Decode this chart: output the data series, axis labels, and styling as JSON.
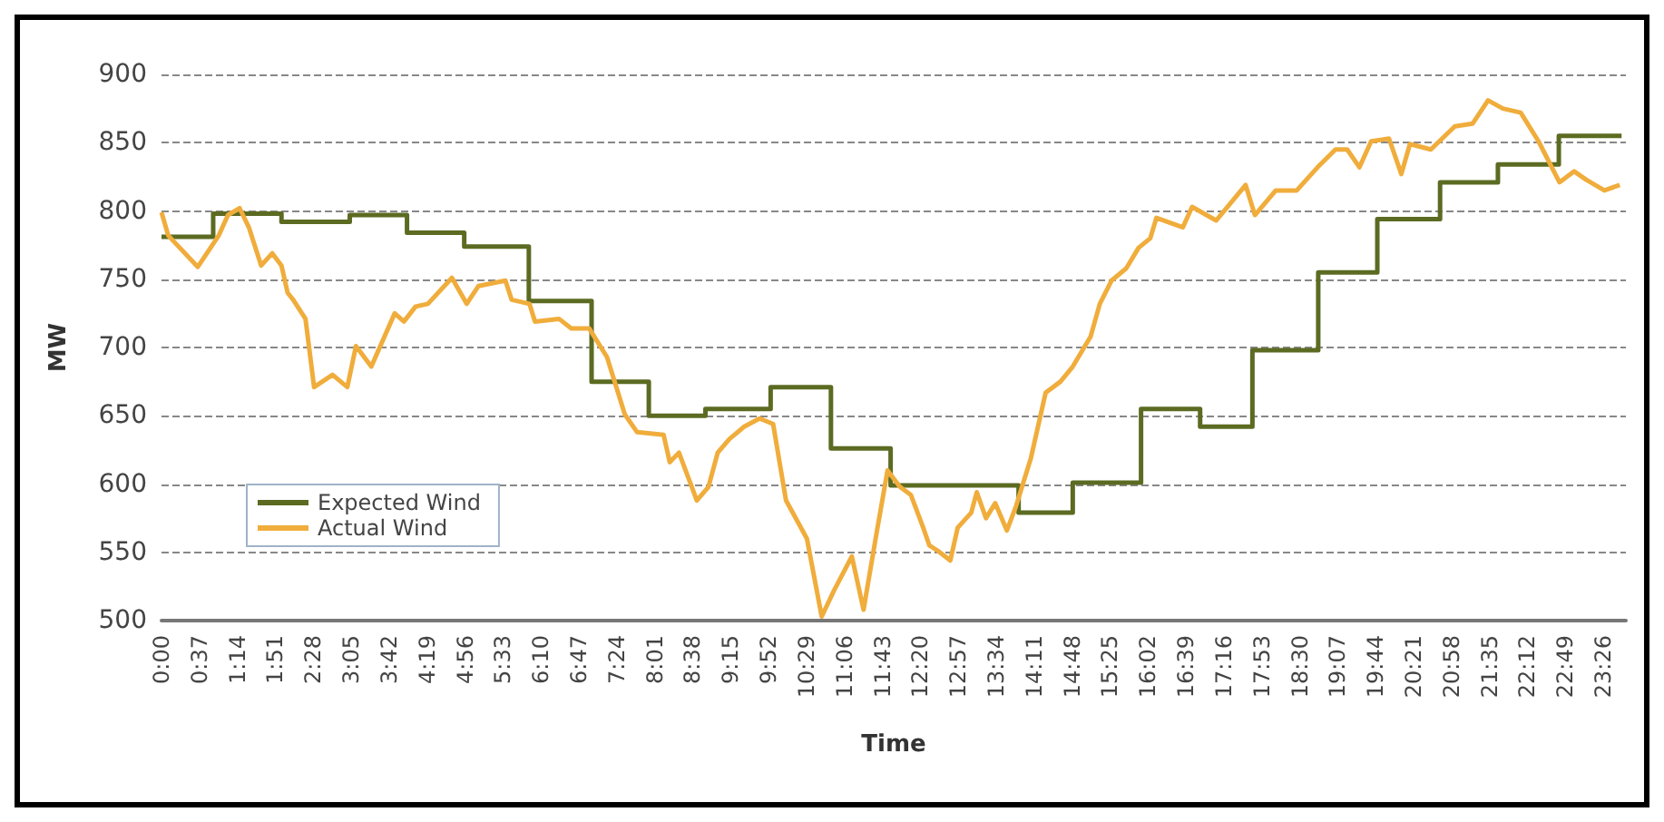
{
  "chart_data": {
    "type": "line",
    "xlabel": "Time",
    "ylabel": "MW",
    "xlim": [
      0,
      23.8
    ],
    "ylim": [
      500,
      900
    ],
    "xticks": [
      {
        "value": 0,
        "label": "0:00"
      },
      {
        "value": 0.6167,
        "label": "0:37"
      },
      {
        "value": 1.2333,
        "label": "1:14"
      },
      {
        "value": 1.85,
        "label": "1:51"
      },
      {
        "value": 2.4667,
        "label": "2:28"
      },
      {
        "value": 3.0833,
        "label": "3:05"
      },
      {
        "value": 3.7,
        "label": "3:42"
      },
      {
        "value": 4.3167,
        "label": "4:19"
      },
      {
        "value": 4.9333,
        "label": "4:56"
      },
      {
        "value": 5.55,
        "label": "5:33"
      },
      {
        "value": 6.1667,
        "label": "6:10"
      },
      {
        "value": 6.7833,
        "label": "6:47"
      },
      {
        "value": 7.4,
        "label": "7:24"
      },
      {
        "value": 8.0167,
        "label": "8:01"
      },
      {
        "value": 8.6333,
        "label": "8:38"
      },
      {
        "value": 9.25,
        "label": "9:15"
      },
      {
        "value": 9.8667,
        "label": "9:52"
      },
      {
        "value": 10.4833,
        "label": "10:29"
      },
      {
        "value": 11.1,
        "label": "11:06"
      },
      {
        "value": 11.7167,
        "label": "11:43"
      },
      {
        "value": 12.3333,
        "label": "12:20"
      },
      {
        "value": 12.95,
        "label": "12:57"
      },
      {
        "value": 13.5667,
        "label": "13:34"
      },
      {
        "value": 14.1833,
        "label": "14:11"
      },
      {
        "value": 14.8,
        "label": "14:48"
      },
      {
        "value": 15.4167,
        "label": "15:25"
      },
      {
        "value": 16.0333,
        "label": "16:02"
      },
      {
        "value": 16.65,
        "label": "16:39"
      },
      {
        "value": 17.2667,
        "label": "17:16"
      },
      {
        "value": 17.8833,
        "label": "17:53"
      },
      {
        "value": 18.5,
        "label": "18:30"
      },
      {
        "value": 19.1167,
        "label": "19:07"
      },
      {
        "value": 19.7333,
        "label": "19:44"
      },
      {
        "value": 20.35,
        "label": "20:21"
      },
      {
        "value": 20.9667,
        "label": "20:58"
      },
      {
        "value": 21.5833,
        "label": "21:35"
      },
      {
        "value": 22.2,
        "label": "22:12"
      },
      {
        "value": 22.8167,
        "label": "22:49"
      },
      {
        "value": 23.4333,
        "label": "23:26"
      }
    ],
    "yticks": [
      500,
      550,
      600,
      650,
      700,
      750,
      800,
      850,
      900
    ],
    "grid": "y",
    "legend": "bottom left",
    "marker": "none",
    "series": [
      {
        "name": "Expected Wind",
        "type": "step",
        "color": "#5b6b22",
        "x": [
          0,
          0.84,
          1.95,
          3.06,
          3.99,
          4.92,
          5.97,
          6.99,
          7.92,
          8.84,
          9.9,
          10.88,
          11.85,
          13.93,
          14.81,
          15.92,
          16.88,
          17.73,
          18.8,
          19.76,
          20.78,
          21.72,
          22.71,
          23.73
        ],
        "values": [
          781,
          798,
          792,
          797,
          784,
          774,
          734,
          675,
          650,
          655,
          671,
          626,
          599,
          579,
          601,
          655,
          642,
          698,
          755,
          794,
          821,
          834,
          855,
          855
        ]
      },
      {
        "name": "Actual Wind",
        "type": "line",
        "color": "#f0ad3c",
        "x": [
          0,
          0.11,
          0.59,
          0.93,
          1.08,
          1.27,
          1.42,
          1.62,
          1.8,
          1.95,
          2.05,
          2.14,
          2.34,
          2.48,
          2.78,
          3.02,
          3.16,
          3.41,
          3.79,
          3.94,
          4.13,
          4.33,
          4.72,
          4.96,
          5.15,
          5.59,
          5.69,
          5.98,
          6.07,
          6.46,
          6.66,
          6.95,
          7.24,
          7.53,
          7.73,
          8.16,
          8.26,
          8.41,
          8.7,
          8.89,
          9.04,
          9.23,
          9.47,
          9.72,
          9.94,
          10.15,
          10.49,
          10.73,
          10.93,
          11.22,
          11.41,
          11.61,
          11.8,
          12.0,
          12.18,
          12.38,
          12.48,
          12.62,
          12.82,
          12.94,
          13.16,
          13.25,
          13.4,
          13.55,
          13.74,
          13.89,
          14.13,
          14.37,
          14.61,
          14.81,
          15.1,
          15.25,
          15.44,
          15.68,
          15.88,
          16.07,
          16.17,
          16.6,
          16.75,
          17.14,
          17.62,
          17.77,
          18.11,
          18.45,
          18.79,
          19.08,
          19.27,
          19.47,
          19.66,
          19.95,
          20.15,
          20.29,
          20.63,
          21.02,
          21.31,
          21.56,
          21.8,
          22.09,
          22.38,
          22.72,
          22.96,
          23.15,
          23.45,
          23.7
        ],
        "values": [
          799,
          782,
          759,
          782,
          797,
          802,
          788,
          760,
          769,
          760,
          740,
          735,
          721,
          671,
          680,
          671,
          701,
          686,
          725,
          719,
          730,
          732,
          751,
          732,
          745,
          749,
          735,
          732,
          719,
          721,
          714,
          714,
          693,
          651,
          638,
          636,
          616,
          623,
          588,
          598,
          623,
          633,
          642,
          648,
          644,
          588,
          560,
          503,
          522,
          547,
          508,
          561,
          610,
          598,
          592,
          568,
          555,
          551,
          544,
          568,
          579,
          594,
          575,
          586,
          566,
          584,
          619,
          667,
          675,
          686,
          708,
          732,
          749,
          758,
          773,
          780,
          795,
          788,
          803,
          793,
          819,
          797,
          815,
          815,
          832,
          845,
          845,
          832,
          851,
          853,
          827,
          849,
          845,
          862,
          864,
          881,
          875,
          872,
          851,
          821,
          829,
          823,
          815,
          819
        ]
      }
    ]
  }
}
